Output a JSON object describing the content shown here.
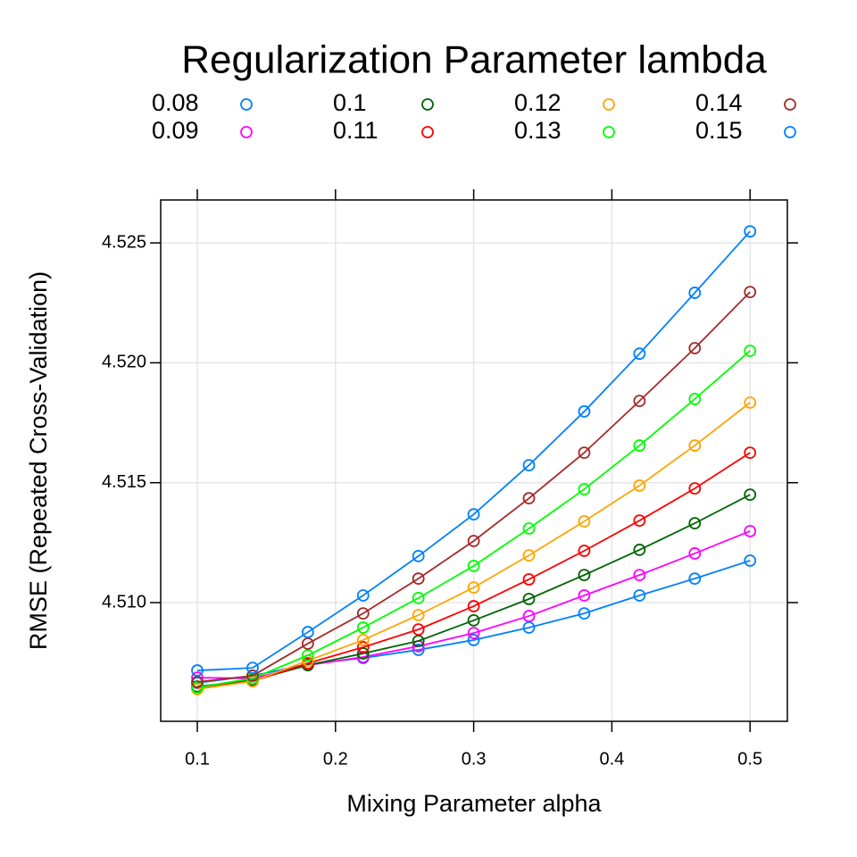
{
  "chart_data": {
    "type": "line",
    "title": "Regularization Parameter lambda",
    "x_label": "Mixing Parameter alpha",
    "y_label": "RMSE (Repeated Cross-Validation)",
    "x": [
      0.1,
      0.14,
      0.18,
      0.22,
      0.26,
      0.3,
      0.34,
      0.38,
      0.42,
      0.46,
      0.5
    ],
    "series": [
      {
        "name": "0.08",
        "color": "#0080ff",
        "values": [
          4.50665,
          4.50695,
          4.50743,
          4.50769,
          4.50803,
          4.50844,
          4.50896,
          4.50955,
          4.5103,
          4.511,
          4.51175
        ]
      },
      {
        "name": "0.09",
        "color": "#ff00ff",
        "values": [
          4.50687,
          4.50684,
          4.50739,
          4.50773,
          4.50818,
          4.50873,
          4.50944,
          4.5103,
          4.51115,
          4.51205,
          4.51298
        ]
      },
      {
        "name": "0.1",
        "color": "#006400",
        "values": [
          4.5065,
          4.50676,
          4.50739,
          4.50788,
          4.5084,
          4.50926,
          4.51015,
          4.51115,
          4.5122,
          4.51331,
          4.5145
        ]
      },
      {
        "name": "0.11",
        "color": "#ff0000",
        "values": [
          4.50643,
          4.50672,
          4.50747,
          4.50814,
          4.50888,
          4.50985,
          4.51097,
          4.51216,
          4.51342,
          4.51476,
          4.51625
        ]
      },
      {
        "name": "0.12",
        "color": "#ffa500",
        "values": [
          4.50639,
          4.50672,
          4.50758,
          4.50844,
          4.50948,
          4.51063,
          4.51197,
          4.51339,
          4.51488,
          4.51655,
          4.51834
        ]
      },
      {
        "name": "0.13",
        "color": "#00ff00",
        "values": [
          4.50646,
          4.50684,
          4.5078,
          4.50896,
          4.51019,
          4.51153,
          4.51309,
          4.51473,
          4.51655,
          4.51849,
          4.5205
        ]
      },
      {
        "name": "0.14",
        "color": "#a52a2a",
        "values": [
          4.50669,
          4.50695,
          4.50829,
          4.50955,
          4.511,
          4.51257,
          4.51435,
          4.51625,
          4.51841,
          4.52061,
          4.52295
        ]
      },
      {
        "name": "0.15",
        "color": "#0080ff",
        "values": [
          4.50717,
          4.50728,
          4.50877,
          4.5103,
          4.51194,
          4.51368,
          4.51573,
          4.51797,
          4.52038,
          4.52292,
          4.52548
        ]
      }
    ],
    "xlim": [
      0.0735,
      0.527
    ],
    "ylim": [
      4.50505,
      4.52679
    ],
    "xticks": [
      0.1,
      0.2,
      0.3,
      0.4,
      0.5
    ],
    "yticks": [
      {
        "value": 4.51,
        "label": "4.510"
      },
      4.515,
      {
        "value": 4.52,
        "label": "4.520"
      },
      4.525
    ],
    "grid": true,
    "legend": "top"
  }
}
